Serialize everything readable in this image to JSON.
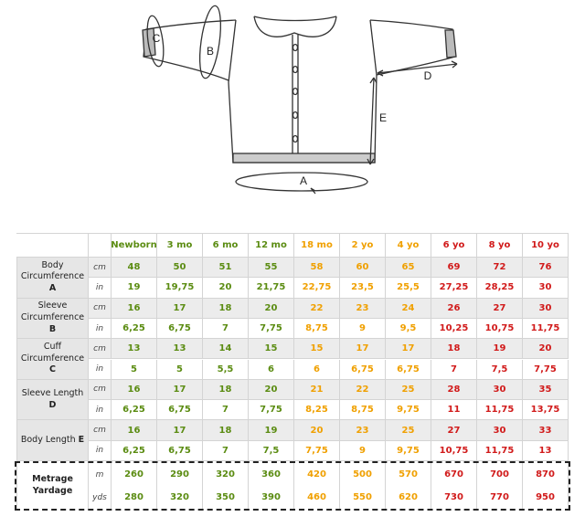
{
  "diagram": {
    "labels": [
      "A",
      "B",
      "C",
      "D",
      "E"
    ]
  },
  "table": {
    "header": [
      "Newborn",
      "3 mo",
      "6 mo",
      "12 mo",
      "18 mo",
      "2 yo",
      "4 yo",
      "6 yo",
      "8 yo",
      "10 yo"
    ],
    "rows": [
      {
        "label": "Body Circumference",
        "letter": "A",
        "units": [
          "cm",
          "in"
        ],
        "values": [
          [
            "48",
            "50",
            "51",
            "55",
            "58",
            "60",
            "65",
            "69",
            "72",
            "76"
          ],
          [
            "19",
            "19,75",
            "20",
            "21,75",
            "22,75",
            "23,5",
            "25,5",
            "27,25",
            "28,25",
            "30"
          ]
        ]
      },
      {
        "label": "Sleeve Circumference",
        "letter": "B",
        "units": [
          "cm",
          "in"
        ],
        "values": [
          [
            "16",
            "17",
            "18",
            "20",
            "22",
            "23",
            "24",
            "26",
            "27",
            "30"
          ],
          [
            "6,25",
            "6,75",
            "7",
            "7,75",
            "8,75",
            "9",
            "9,5",
            "10,25",
            "10,75",
            "11,75"
          ]
        ]
      },
      {
        "label": "Cuff Circumference",
        "letter": "C",
        "units": [
          "cm",
          "in"
        ],
        "values": [
          [
            "13",
            "13",
            "14",
            "15",
            "15",
            "17",
            "17",
            "18",
            "19",
            "20"
          ],
          [
            "5",
            "5",
            "5,5",
            "6",
            "6",
            "6,75",
            "6,75",
            "7",
            "7,5",
            "7,75"
          ]
        ]
      },
      {
        "label": "Sleeve Length",
        "letter": "D",
        "units": [
          "cm",
          "in"
        ],
        "values": [
          [
            "16",
            "17",
            "18",
            "20",
            "21",
            "22",
            "25",
            "28",
            "30",
            "35"
          ],
          [
            "6,25",
            "6,75",
            "7",
            "7,75",
            "8,25",
            "8,75",
            "9,75",
            "11",
            "11,75",
            "13,75"
          ]
        ]
      },
      {
        "label": "Body Length",
        "letter": "E",
        "units": [
          "cm",
          "in"
        ],
        "values": [
          [
            "16",
            "17",
            "18",
            "19",
            "20",
            "23",
            "25",
            "27",
            "30",
            "33"
          ],
          [
            "6,25",
            "6,75",
            "7",
            "7,5",
            "7,75",
            "9",
            "9,75",
            "10,75",
            "11,75",
            "13"
          ]
        ]
      }
    ],
    "yarn": {
      "label": [
        "Metrage",
        "Yardage"
      ],
      "units": [
        "m",
        "yds"
      ],
      "values": [
        [
          "260",
          "290",
          "320",
          "360",
          "420",
          "500",
          "570",
          "670",
          "700",
          "870"
        ],
        [
          "280",
          "320",
          "350",
          "390",
          "460",
          "550",
          "620",
          "730",
          "770",
          "950"
        ]
      ]
    }
  }
}
